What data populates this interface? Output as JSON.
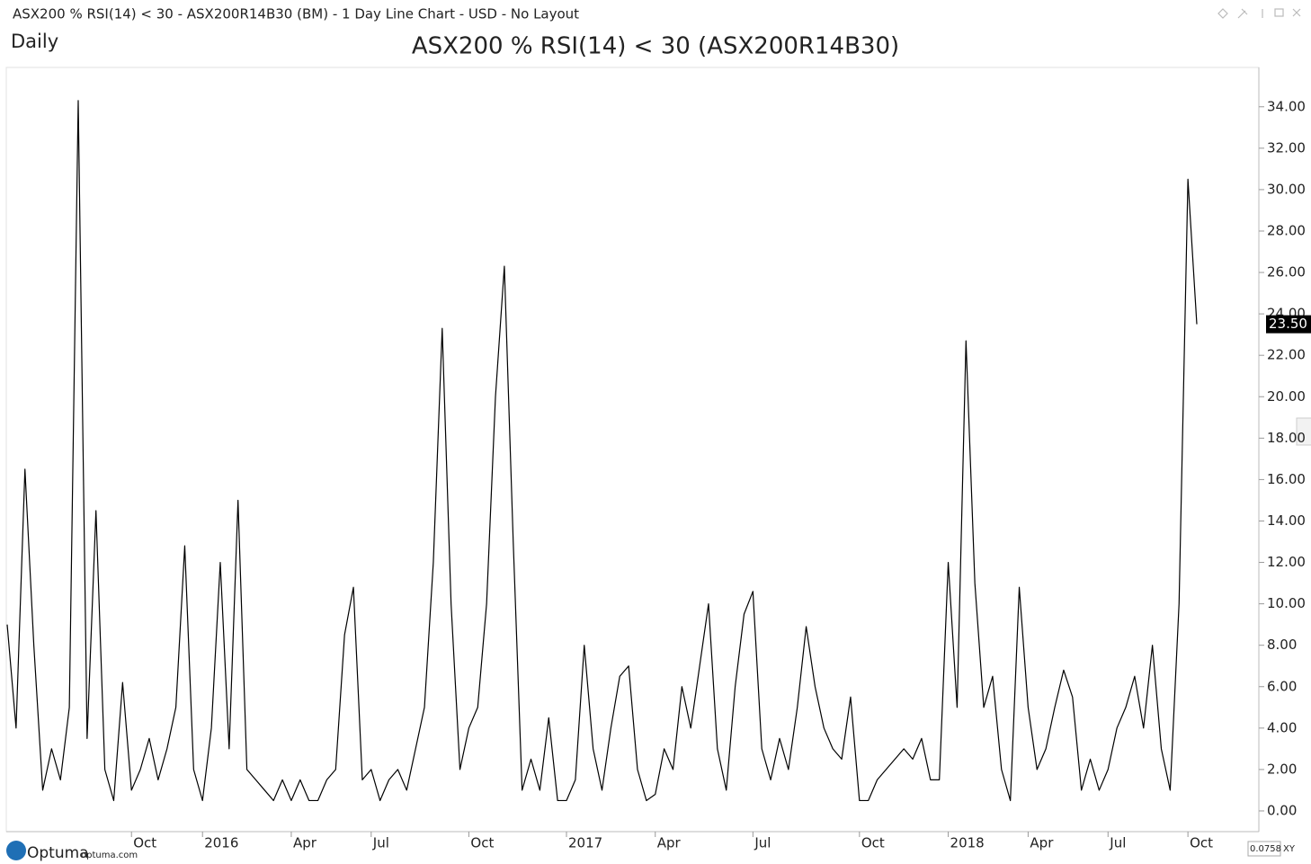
{
  "window_title": "ASX200 % RSI(14) < 30 - ASX200R14B30 (BM) - 1 Day Line Chart - USD - No Layout",
  "periodicity": "Daily",
  "footer": {
    "logo": "Optuma",
    "site": "optuma.com",
    "zoom": "0.0758",
    "mode": "XY"
  },
  "chart_data": {
    "type": "line",
    "title": "ASX200 % RSI(14) < 30 (ASX200R14B30)",
    "color": "#000000",
    "categories": [
      null,
      null,
      null,
      null,
      null,
      null,
      null,
      null,
      null,
      null,
      null,
      null,
      null,
      null,
      "Oct",
      null,
      null,
      null,
      null,
      null,
      null,
      null,
      "2016",
      null,
      null,
      null,
      null,
      null,
      null,
      null,
      null,
      null,
      "Apr",
      null,
      null,
      null,
      null,
      null,
      null,
      null,
      null,
      "Jul",
      null,
      null,
      null,
      null,
      null,
      null,
      null,
      null,
      null,
      null,
      "Oct",
      null,
      null,
      null,
      null,
      null,
      null,
      null,
      null,
      null,
      null,
      "2017",
      null,
      null,
      null,
      null,
      null,
      null,
      null,
      null,
      null,
      "Apr",
      null,
      null,
      null,
      null,
      null,
      null,
      null,
      null,
      null,
      null,
      "Jul",
      null,
      null,
      null,
      null,
      null,
      null,
      null,
      null,
      null,
      null,
      null,
      "Oct",
      null,
      null,
      null,
      null,
      null,
      null,
      null,
      null,
      null,
      "2018",
      null,
      null,
      null,
      null,
      null,
      null,
      null,
      null,
      "Apr",
      null,
      null,
      null,
      null,
      null,
      null,
      null,
      null,
      "Jul",
      null,
      null,
      null,
      null,
      null,
      null,
      null,
      null,
      "Oct",
      null
    ],
    "values": [
      9,
      4,
      16.5,
      8,
      1,
      3,
      1.5,
      5,
      34.3,
      3.5,
      14.5,
      2,
      0.5,
      6.2,
      1,
      2,
      3.5,
      1.5,
      3,
      5,
      12.8,
      2,
      0.5,
      4,
      12,
      3,
      15,
      2,
      1.5,
      1,
      0.5,
      1.5,
      0.5,
      1.5,
      0.5,
      0.5,
      1.5,
      2,
      8.5,
      10.8,
      1.5,
      2,
      0.5,
      1.5,
      2,
      1,
      3,
      5,
      12,
      23.3,
      10,
      2,
      4,
      5,
      10,
      20,
      26.3,
      13,
      1,
      2.5,
      1,
      4.5,
      0.5,
      0.5,
      1.5,
      8,
      3,
      1,
      4,
      6.5,
      7,
      2,
      0.5,
      0.8,
      3,
      2,
      6,
      4,
      7,
      10,
      3,
      1,
      6,
      9.5,
      10.6,
      3,
      1.5,
      3.5,
      2,
      5,
      8.9,
      6,
      4,
      3,
      2.5,
      5.5,
      0.5,
      0.5,
      1.5,
      2,
      2.5,
      3,
      2.5,
      3.5,
      1.5,
      1.5,
      12,
      5,
      22.7,
      11,
      5,
      6.5,
      2,
      0.5,
      10.8,
      5,
      2,
      3,
      5,
      6.8,
      5.5,
      1,
      2.5,
      1,
      2,
      4,
      5,
      6.5,
      4,
      8,
      3,
      1,
      10,
      30.5,
      23.5
    ],
    "value_labels": [
      null,
      null,
      null,
      null,
      null,
      null,
      null,
      null,
      null,
      null,
      null,
      null,
      null,
      null,
      null,
      null,
      null,
      null,
      null,
      null,
      null,
      null,
      null,
      null,
      null,
      null,
      null,
      null,
      null,
      null,
      null,
      null,
      null,
      null,
      null,
      null,
      null,
      null,
      null,
      null,
      null,
      null,
      null,
      null,
      null,
      null,
      null,
      null,
      null,
      null,
      null,
      null,
      null,
      null,
      null,
      null,
      null,
      null,
      null,
      null,
      null,
      null,
      null,
      null,
      null,
      null,
      null,
      null,
      null,
      null,
      null,
      null,
      null,
      null,
      null,
      null,
      null,
      null,
      null,
      null,
      null,
      null,
      null,
      null,
      null,
      null,
      null,
      null,
      null,
      null,
      null,
      null,
      null,
      null,
      null,
      null,
      null,
      null,
      null,
      null,
      null,
      null,
      null,
      null,
      null,
      null,
      null,
      null,
      null,
      null,
      null,
      null,
      null,
      null,
      null,
      null,
      null,
      null,
      null,
      null,
      null,
      null,
      null,
      null,
      null,
      null,
      null,
      null,
      null,
      null,
      null,
      null,
      null,
      null,
      "23.50"
    ],
    "ylim": [
      -1,
      35.9
    ],
    "yticks": [
      {
        "value": 0,
        "label": "0.00"
      },
      {
        "value": 2,
        "label": "2.00"
      },
      {
        "value": 4,
        "label": "4.00"
      },
      {
        "value": 6,
        "label": "6.00"
      },
      {
        "value": 8,
        "label": "8.00"
      },
      {
        "value": 10,
        "label": "10.00"
      },
      {
        "value": 12,
        "label": "12.00"
      },
      {
        "value": 14,
        "label": "14.00"
      },
      {
        "value": 16,
        "label": "16.00"
      },
      {
        "value": 18,
        "label": "18.00"
      },
      {
        "value": 20,
        "label": "20.00"
      },
      {
        "value": 22,
        "label": "22.00"
      },
      {
        "value": 24,
        "label": "24.00"
      },
      {
        "value": 26,
        "label": "26.00"
      },
      {
        "value": 28,
        "label": "28.00"
      },
      {
        "value": 30,
        "label": "30.00"
      },
      {
        "value": 32,
        "label": "32.00"
      },
      {
        "value": 34,
        "label": "34.00"
      }
    ],
    "grid": false
  }
}
